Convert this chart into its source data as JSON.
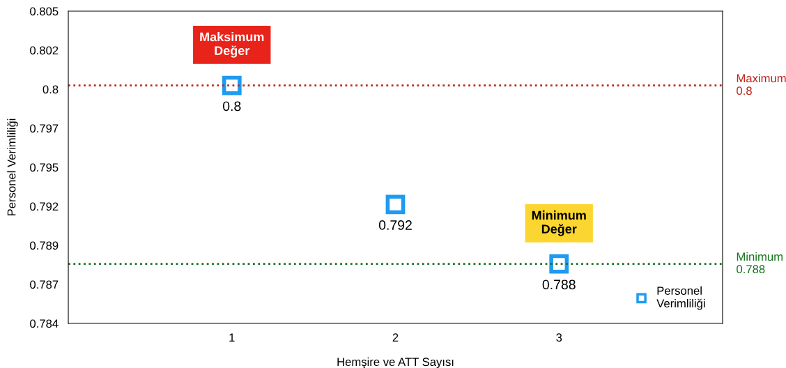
{
  "chart_data": {
    "type": "scatter",
    "xlabel": "Hemşire ve ATT Sayısı",
    "ylabel": "Personel Verimliliği",
    "x": [
      1,
      2,
      3
    ],
    "series": [
      {
        "name": "Personel Verimliliği",
        "color": "#1e9bf0",
        "values": [
          0.8,
          0.792,
          0.788
        ]
      }
    ],
    "xlim": [
      0,
      4
    ],
    "xticks": [
      1,
      2,
      3
    ],
    "ylim": [
      0.784,
      0.805
    ],
    "yticks": [
      0.784,
      {
        "value": 0.786625,
        "label": "0.787"
      },
      {
        "value": 0.78925,
        "label": "0.789"
      },
      {
        "value": 0.791875,
        "label": "0.792"
      },
      {
        "value": 0.7945,
        "label": "0.795"
      },
      {
        "value": 0.797125,
        "label": "0.797"
      },
      {
        "value": 0.79975,
        "label": "0.8"
      },
      {
        "value": 0.802375,
        "label": "0.802"
      },
      0.805
    ],
    "ref_lines": [
      {
        "axis": "y",
        "value": 0.8,
        "label": "Maximum\n0.8",
        "color": "#c0231b",
        "line_style": "dotted"
      },
      {
        "axis": "y",
        "value": 0.788,
        "label": "Minimum\n0.788",
        "color": "#17741f",
        "line_style": "dotted"
      }
    ],
    "annotations": [
      {
        "text": "Maksimum\nDeğer",
        "x": 1,
        "y": 0.8
      },
      {
        "text": "Minimum\nDeğer",
        "x": 3,
        "y": 0.788
      }
    ],
    "data_labels": true,
    "marker": "square",
    "grid": false,
    "legend": "bottom right"
  }
}
